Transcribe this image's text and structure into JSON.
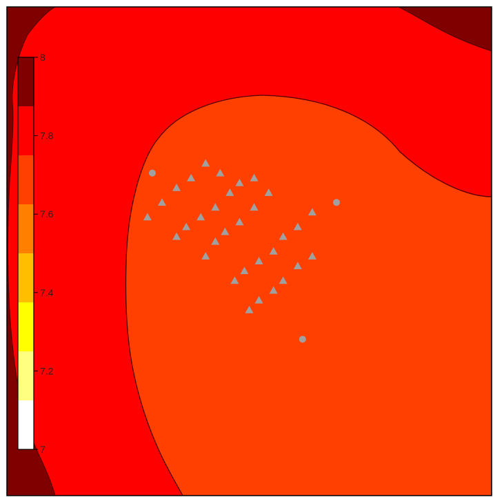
{
  "chart_data": {
    "type": "contour",
    "title": "",
    "xlabel": "",
    "ylabel": "",
    "colorbar": {
      "min": 7,
      "max": 8,
      "levels": [
        7.0,
        7.125,
        7.25,
        7.375,
        7.5,
        7.625,
        7.75,
        7.875,
        8.0
      ],
      "colors": [
        "#ffffff",
        "#ffff80",
        "#ffff00",
        "#ffbf00",
        "#ff8000",
        "#ff4000",
        "#ff0000",
        "#800000"
      ],
      "ticks": [
        {
          "value": 7,
          "label": "7"
        },
        {
          "value": 7.2,
          "label": "7.2"
        },
        {
          "value": 7.4,
          "label": "7.4"
        },
        {
          "value": 7.6,
          "label": "7.6"
        },
        {
          "value": 7.8,
          "label": "7.8"
        },
        {
          "value": 8,
          "label": "8"
        }
      ]
    },
    "contour_regions": [
      {
        "level_range": [
          7.875,
          8.0
        ],
        "color": "#800000"
      },
      {
        "level_range": [
          7.75,
          7.875
        ],
        "color": "#ff0000"
      },
      {
        "level_range": [
          7.625,
          7.75
        ],
        "color": "#ff4000"
      }
    ],
    "marker_color": "#a0a0a0",
    "triangle_markers": [
      {
        "x": 0.41,
        "y": 0.32
      },
      {
        "x": 0.44,
        "y": 0.34
      },
      {
        "x": 0.48,
        "y": 0.36
      },
      {
        "x": 0.51,
        "y": 0.35
      },
      {
        "x": 0.38,
        "y": 0.35
      },
      {
        "x": 0.35,
        "y": 0.37
      },
      {
        "x": 0.32,
        "y": 0.4
      },
      {
        "x": 0.29,
        "y": 0.43
      },
      {
        "x": 0.46,
        "y": 0.38
      },
      {
        "x": 0.43,
        "y": 0.41
      },
      {
        "x": 0.4,
        "y": 0.43
      },
      {
        "x": 0.37,
        "y": 0.45
      },
      {
        "x": 0.35,
        "y": 0.47
      },
      {
        "x": 0.54,
        "y": 0.38
      },
      {
        "x": 0.51,
        "y": 0.41
      },
      {
        "x": 0.48,
        "y": 0.44
      },
      {
        "x": 0.45,
        "y": 0.46
      },
      {
        "x": 0.43,
        "y": 0.48
      },
      {
        "x": 0.41,
        "y": 0.51
      },
      {
        "x": 0.63,
        "y": 0.42
      },
      {
        "x": 0.6,
        "y": 0.45
      },
      {
        "x": 0.57,
        "y": 0.47
      },
      {
        "x": 0.55,
        "y": 0.5
      },
      {
        "x": 0.52,
        "y": 0.52
      },
      {
        "x": 0.49,
        "y": 0.54
      },
      {
        "x": 0.47,
        "y": 0.56
      },
      {
        "x": 0.63,
        "y": 0.51
      },
      {
        "x": 0.6,
        "y": 0.53
      },
      {
        "x": 0.57,
        "y": 0.56
      },
      {
        "x": 0.55,
        "y": 0.58
      },
      {
        "x": 0.52,
        "y": 0.6
      },
      {
        "x": 0.5,
        "y": 0.62
      }
    ],
    "circle_markers": [
      {
        "x": 0.3,
        "y": 0.34
      },
      {
        "x": 0.68,
        "y": 0.4
      },
      {
        "x": 0.61,
        "y": 0.68
      }
    ]
  }
}
